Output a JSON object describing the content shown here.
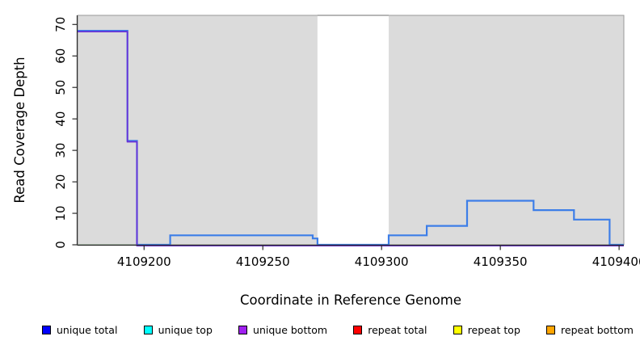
{
  "figure": {
    "background": "#FFFFFF"
  },
  "chart_data": {
    "type": "line",
    "subtype": "step-coverage-plot",
    "title": "",
    "xlabel": "Coordinate in Reference Genome",
    "ylabel": "Read Coverage Depth",
    "xlim": [
      4109172,
      4109402
    ],
    "ylim": [
      0,
      72.9
    ],
    "x_ticks": [
      4109200,
      4109250,
      4109300,
      4109350,
      4109400
    ],
    "y_ticks": [
      0,
      10,
      20,
      30,
      40,
      50,
      60,
      70
    ],
    "grid": false,
    "panel_bg": "#DBDBDB",
    "masked_region": {
      "start": 4109273,
      "end": 4109303,
      "fill": "#FFFFFF"
    },
    "series": [
      {
        "name": "unique total",
        "color": "#3D7EE8",
        "segments": [
          [
            4109172,
            4109193,
            68
          ],
          [
            4109193,
            4109197,
            33
          ],
          [
            4109197,
            4109211,
            0
          ],
          [
            4109211,
            4109271,
            3
          ],
          [
            4109271,
            4109273,
            2
          ],
          [
            4109273,
            4109303,
            0
          ],
          [
            4109303,
            4109319,
            3
          ],
          [
            4109319,
            4109336,
            6
          ],
          [
            4109336,
            4109364,
            14
          ],
          [
            4109364,
            4109381,
            11
          ],
          [
            4109381,
            4109396,
            8
          ],
          [
            4109396,
            4109402,
            0
          ]
        ]
      },
      {
        "name": "unique bottom",
        "color": "#6A2FD6",
        "segments": [
          [
            4109172,
            4109193,
            68
          ],
          [
            4109193,
            4109197,
            33
          ],
          [
            4109197,
            4109402,
            0
          ]
        ]
      },
      {
        "name": "unique top",
        "color": "#90C990",
        "segments": [
          [
            4109172,
            4109197,
            0
          ]
        ]
      },
      {
        "name": "repeat total",
        "color": "#E04058",
        "segments": [
          [
            4109211,
            4109273,
            0
          ],
          [
            4109303,
            4109396,
            0
          ]
        ]
      }
    ],
    "legend_position": "bottom",
    "legend": [
      {
        "label": "unique total",
        "color": "#0000FF"
      },
      {
        "label": "unique top",
        "color": "#00FFFF"
      },
      {
        "label": "unique bottom",
        "color": "#A020F0"
      },
      {
        "label": "repeat total",
        "color": "#FF0000"
      },
      {
        "label": "repeat top",
        "color": "#FFFF00"
      },
      {
        "label": "repeat bottom",
        "color": "#FFA500"
      }
    ]
  }
}
